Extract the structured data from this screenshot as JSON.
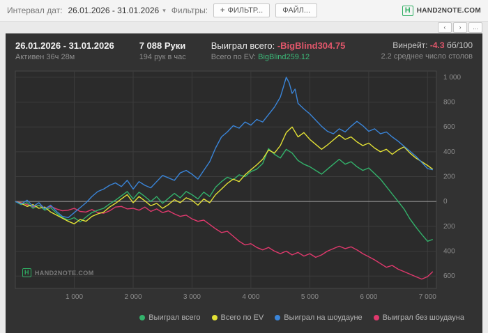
{
  "topbar": {
    "interval_label": "Интервал дат:",
    "date_range": "26.01.2026 - 31.01.2026",
    "filters_label": "Фильтры:",
    "filter_button": "ФИЛЬТР...",
    "file_button": "ФАЙЛ...",
    "brand": "HAND2NOTE.COM",
    "brand_letter": "H"
  },
  "icons": {
    "caret_down": "▾",
    "plus": "+"
  },
  "nav": {
    "prev": "‹",
    "next": "›",
    "more": "..."
  },
  "header": {
    "date_range": "26.01.2026 - 31.01.2026",
    "active": "Активен 36ч 28м",
    "hands": "7 088 Руки",
    "hands_rate": "194 рук в час",
    "won_label": "Выиграл всего:",
    "won_value": "-BigBlind304.75",
    "ev_label": "Всего по EV:",
    "ev_value": "BigBlind259.12",
    "winrate_label": "Винрейт:",
    "winrate_value": "-4.3",
    "winrate_unit": "бб/100",
    "avg_tables": "2.2 среднее число столов"
  },
  "watermark": {
    "letter": "H",
    "brand": "HAND2NOTE.COM"
  },
  "colors": {
    "negative": "#e0566a",
    "positive": "#3cb878",
    "brand_green": "#2fae62",
    "panel_bg": "#323232"
  },
  "chart_data": {
    "type": "line",
    "xlim": [
      0,
      7150
    ],
    "ylim": [
      -700,
      1050
    ],
    "x_ticks": [
      1000,
      2000,
      3000,
      4000,
      5000,
      6000,
      7000
    ],
    "y_ticks": [
      1000,
      800,
      600,
      400,
      200,
      0,
      -200,
      -400,
      -600
    ],
    "grid": true,
    "legend_position": "bottom-right",
    "plot_bg": "#2b2b2b",
    "grid_color": "#3c3c3c",
    "zero_line_color": "#8f8f8f",
    "border_color": "#474747",
    "draw_order": [
      3,
      0,
      1,
      2
    ],
    "series": [
      {
        "name": "Выиграл всего",
        "color": "#33b26b",
        "final_value": -304.75,
        "points": [
          [
            0,
            0
          ],
          [
            100,
            -25
          ],
          [
            200,
            -10
          ],
          [
            300,
            -55
          ],
          [
            400,
            -30
          ],
          [
            500,
            -70
          ],
          [
            600,
            -50
          ],
          [
            700,
            -95
          ],
          [
            800,
            -130
          ],
          [
            900,
            -150
          ],
          [
            1000,
            -130
          ],
          [
            1100,
            -165
          ],
          [
            1200,
            -125
          ],
          [
            1300,
            -90
          ],
          [
            1400,
            -70
          ],
          [
            1500,
            -55
          ],
          [
            1600,
            -20
          ],
          [
            1700,
            10
          ],
          [
            1800,
            45
          ],
          [
            1900,
            80
          ],
          [
            2000,
            20
          ],
          [
            2100,
            75
          ],
          [
            2200,
            40
          ],
          [
            2300,
            0
          ],
          [
            2400,
            40
          ],
          [
            2500,
            -15
          ],
          [
            2600,
            25
          ],
          [
            2700,
            65
          ],
          [
            2800,
            30
          ],
          [
            2900,
            80
          ],
          [
            3000,
            55
          ],
          [
            3100,
            20
          ],
          [
            3200,
            75
          ],
          [
            3300,
            40
          ],
          [
            3400,
            115
          ],
          [
            3500,
            160
          ],
          [
            3600,
            195
          ],
          [
            3700,
            175
          ],
          [
            3800,
            215
          ],
          [
            3900,
            200
          ],
          [
            4000,
            240
          ],
          [
            4100,
            260
          ],
          [
            4200,
            305
          ],
          [
            4300,
            425
          ],
          [
            4400,
            380
          ],
          [
            4500,
            350
          ],
          [
            4600,
            420
          ],
          [
            4700,
            390
          ],
          [
            4800,
            330
          ],
          [
            4900,
            300
          ],
          [
            5000,
            280
          ],
          [
            5100,
            250
          ],
          [
            5200,
            220
          ],
          [
            5300,
            260
          ],
          [
            5400,
            300
          ],
          [
            5500,
            340
          ],
          [
            5600,
            300
          ],
          [
            5700,
            320
          ],
          [
            5800,
            280
          ],
          [
            5900,
            250
          ],
          [
            6000,
            270
          ],
          [
            6100,
            225
          ],
          [
            6200,
            180
          ],
          [
            6300,
            120
          ],
          [
            6400,
            60
          ],
          [
            6500,
            0
          ],
          [
            6600,
            -60
          ],
          [
            6700,
            -140
          ],
          [
            6800,
            -205
          ],
          [
            6900,
            -265
          ],
          [
            7000,
            -320
          ],
          [
            7088,
            -305
          ]
        ]
      },
      {
        "name": "Всего по EV",
        "color": "#e3e135",
        "final_value": 259.12,
        "points": [
          [
            0,
            0
          ],
          [
            100,
            -15
          ],
          [
            200,
            -40
          ],
          [
            300,
            -25
          ],
          [
            400,
            -55
          ],
          [
            500,
            -45
          ],
          [
            600,
            -85
          ],
          [
            700,
            -110
          ],
          [
            800,
            -135
          ],
          [
            900,
            -160
          ],
          [
            1000,
            -180
          ],
          [
            1100,
            -145
          ],
          [
            1200,
            -160
          ],
          [
            1300,
            -120
          ],
          [
            1400,
            -100
          ],
          [
            1500,
            -85
          ],
          [
            1600,
            -45
          ],
          [
            1700,
            -15
          ],
          [
            1800,
            20
          ],
          [
            1900,
            55
          ],
          [
            2000,
            -10
          ],
          [
            2100,
            40
          ],
          [
            2200,
            5
          ],
          [
            2300,
            -35
          ],
          [
            2400,
            -15
          ],
          [
            2500,
            -55
          ],
          [
            2600,
            -25
          ],
          [
            2700,
            15
          ],
          [
            2800,
            -10
          ],
          [
            2900,
            30
          ],
          [
            3000,
            10
          ],
          [
            3100,
            -30
          ],
          [
            3200,
            20
          ],
          [
            3300,
            -10
          ],
          [
            3400,
            55
          ],
          [
            3500,
            100
          ],
          [
            3600,
            145
          ],
          [
            3700,
            180
          ],
          [
            3800,
            160
          ],
          [
            3900,
            215
          ],
          [
            4000,
            255
          ],
          [
            4100,
            295
          ],
          [
            4200,
            340
          ],
          [
            4300,
            415
          ],
          [
            4400,
            390
          ],
          [
            4500,
            450
          ],
          [
            4600,
            555
          ],
          [
            4700,
            600
          ],
          [
            4800,
            520
          ],
          [
            4900,
            555
          ],
          [
            5000,
            500
          ],
          [
            5100,
            460
          ],
          [
            5200,
            420
          ],
          [
            5300,
            455
          ],
          [
            5400,
            495
          ],
          [
            5500,
            535
          ],
          [
            5600,
            500
          ],
          [
            5700,
            520
          ],
          [
            5800,
            480
          ],
          [
            5900,
            450
          ],
          [
            6000,
            470
          ],
          [
            6100,
            430
          ],
          [
            6200,
            400
          ],
          [
            6300,
            420
          ],
          [
            6400,
            380
          ],
          [
            6500,
            415
          ],
          [
            6600,
            440
          ],
          [
            6700,
            390
          ],
          [
            6800,
            350
          ],
          [
            6900,
            320
          ],
          [
            7000,
            290
          ],
          [
            7088,
            259
          ]
        ]
      },
      {
        "name": "Выиграл на шоудауне",
        "color": "#3a85d9",
        "final_value": 255,
        "points": [
          [
            0,
            0
          ],
          [
            100,
            -20
          ],
          [
            200,
            10
          ],
          [
            300,
            -40
          ],
          [
            400,
            -10
          ],
          [
            500,
            -60
          ],
          [
            600,
            -30
          ],
          [
            700,
            -80
          ],
          [
            800,
            -120
          ],
          [
            900,
            -130
          ],
          [
            1000,
            -90
          ],
          [
            1100,
            -50
          ],
          [
            1200,
            -10
          ],
          [
            1300,
            40
          ],
          [
            1400,
            80
          ],
          [
            1500,
            100
          ],
          [
            1600,
            130
          ],
          [
            1700,
            150
          ],
          [
            1800,
            120
          ],
          [
            1900,
            170
          ],
          [
            2000,
            100
          ],
          [
            2100,
            160
          ],
          [
            2200,
            130
          ],
          [
            2300,
            110
          ],
          [
            2400,
            160
          ],
          [
            2500,
            210
          ],
          [
            2600,
            190
          ],
          [
            2700,
            170
          ],
          [
            2800,
            230
          ],
          [
            2900,
            250
          ],
          [
            3000,
            220
          ],
          [
            3100,
            180
          ],
          [
            3200,
            250
          ],
          [
            3300,
            320
          ],
          [
            3400,
            430
          ],
          [
            3500,
            520
          ],
          [
            3600,
            560
          ],
          [
            3700,
            610
          ],
          [
            3800,
            590
          ],
          [
            3900,
            640
          ],
          [
            4000,
            615
          ],
          [
            4100,
            660
          ],
          [
            4200,
            640
          ],
          [
            4300,
            700
          ],
          [
            4400,
            760
          ],
          [
            4500,
            840
          ],
          [
            4550,
            920
          ],
          [
            4600,
            1000
          ],
          [
            4650,
            955
          ],
          [
            4700,
            870
          ],
          [
            4750,
            905
          ],
          [
            4800,
            790
          ],
          [
            4900,
            745
          ],
          [
            5000,
            705
          ],
          [
            5100,
            655
          ],
          [
            5200,
            605
          ],
          [
            5300,
            565
          ],
          [
            5400,
            545
          ],
          [
            5500,
            585
          ],
          [
            5600,
            560
          ],
          [
            5700,
            605
          ],
          [
            5800,
            645
          ],
          [
            5900,
            610
          ],
          [
            6000,
            565
          ],
          [
            6100,
            585
          ],
          [
            6200,
            545
          ],
          [
            6300,
            560
          ],
          [
            6400,
            520
          ],
          [
            6500,
            485
          ],
          [
            6600,
            445
          ],
          [
            6700,
            405
          ],
          [
            6800,
            365
          ],
          [
            6900,
            315
          ],
          [
            7000,
            265
          ],
          [
            7088,
            255
          ]
        ]
      },
      {
        "name": "Выиграл без шоудауна",
        "color": "#e0396d",
        "final_value": -565,
        "points": [
          [
            0,
            0
          ],
          [
            100,
            -10
          ],
          [
            200,
            -25
          ],
          [
            300,
            -45
          ],
          [
            400,
            -30
          ],
          [
            500,
            -55
          ],
          [
            600,
            -40
          ],
          [
            700,
            -60
          ],
          [
            800,
            -75
          ],
          [
            900,
            -70
          ],
          [
            1000,
            -55
          ],
          [
            1100,
            -80
          ],
          [
            1200,
            -85
          ],
          [
            1300,
            -65
          ],
          [
            1400,
            -90
          ],
          [
            1500,
            -95
          ],
          [
            1600,
            -75
          ],
          [
            1700,
            -45
          ],
          [
            1800,
            -40
          ],
          [
            1900,
            -60
          ],
          [
            2000,
            -55
          ],
          [
            2100,
            -70
          ],
          [
            2200,
            -45
          ],
          [
            2300,
            -80
          ],
          [
            2400,
            -60
          ],
          [
            2500,
            -90
          ],
          [
            2600,
            -75
          ],
          [
            2700,
            -100
          ],
          [
            2800,
            -120
          ],
          [
            2900,
            -110
          ],
          [
            3000,
            -140
          ],
          [
            3100,
            -160
          ],
          [
            3200,
            -150
          ],
          [
            3300,
            -185
          ],
          [
            3400,
            -220
          ],
          [
            3500,
            -250
          ],
          [
            3600,
            -240
          ],
          [
            3700,
            -280
          ],
          [
            3800,
            -320
          ],
          [
            3900,
            -350
          ],
          [
            4000,
            -340
          ],
          [
            4100,
            -370
          ],
          [
            4200,
            -390
          ],
          [
            4300,
            -370
          ],
          [
            4400,
            -400
          ],
          [
            4500,
            -420
          ],
          [
            4600,
            -400
          ],
          [
            4700,
            -430
          ],
          [
            4800,
            -410
          ],
          [
            4900,
            -440
          ],
          [
            5000,
            -420
          ],
          [
            5100,
            -450
          ],
          [
            5200,
            -430
          ],
          [
            5300,
            -400
          ],
          [
            5400,
            -380
          ],
          [
            5500,
            -360
          ],
          [
            5600,
            -380
          ],
          [
            5700,
            -365
          ],
          [
            5800,
            -390
          ],
          [
            5900,
            -420
          ],
          [
            6000,
            -445
          ],
          [
            6100,
            -470
          ],
          [
            6200,
            -500
          ],
          [
            6300,
            -530
          ],
          [
            6400,
            -515
          ],
          [
            6500,
            -545
          ],
          [
            6600,
            -565
          ],
          [
            6700,
            -585
          ],
          [
            6800,
            -605
          ],
          [
            6900,
            -625
          ],
          [
            7000,
            -605
          ],
          [
            7088,
            -565
          ]
        ]
      }
    ]
  }
}
